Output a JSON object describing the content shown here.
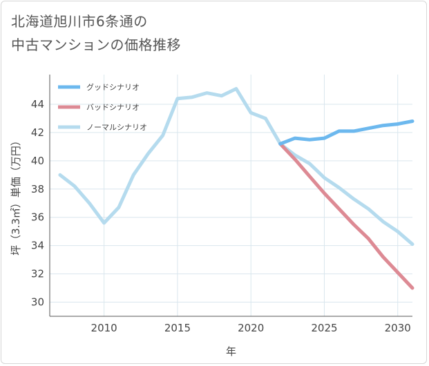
{
  "title": {
    "line1": "北海道旭川市6条通の",
    "line2": "中古マンションの価格推移"
  },
  "chart_data": {
    "type": "line",
    "xlabel": "年",
    "ylabel": "坪（3.3㎡）単価（万円）",
    "xlim": [
      2006.3,
      2031
    ],
    "ylim": [
      29,
      46.1
    ],
    "x_ticks": [
      2010,
      2015,
      2020,
      2025,
      2030
    ],
    "y_ticks": [
      30,
      32,
      34,
      36,
      38,
      40,
      42,
      44
    ],
    "grid": true,
    "legend_position": "top-left",
    "series": [
      {
        "name": "グッドシナリオ",
        "color": "#6cb8ee",
        "x": [
          2022,
          2023,
          2024,
          2025,
          2026,
          2027,
          2028,
          2029,
          2030,
          2031
        ],
        "y": [
          41.2,
          41.6,
          41.5,
          41.6,
          42.1,
          42.1,
          42.3,
          42.5,
          42.6,
          42.8
        ]
      },
      {
        "name": "バッドシナリオ",
        "color": "#dd8a94",
        "x": [
          2022,
          2023,
          2024,
          2025,
          2026,
          2027,
          2028,
          2029,
          2030,
          2031
        ],
        "y": [
          41.2,
          40.1,
          38.9,
          37.7,
          36.6,
          35.5,
          34.5,
          33.2,
          32.1,
          31.0
        ]
      },
      {
        "name": "ノーマルシナリオ",
        "color": "#b5dbee",
        "x": [
          2007,
          2008,
          2009,
          2010,
          2011,
          2012,
          2013,
          2014,
          2015,
          2016,
          2017,
          2018,
          2019,
          2020,
          2021,
          2022,
          2023,
          2024,
          2025,
          2026,
          2027,
          2028,
          2029,
          2030,
          2031
        ],
        "y": [
          39.0,
          38.2,
          37.0,
          35.6,
          36.7,
          39.0,
          40.5,
          41.8,
          44.4,
          44.5,
          44.8,
          44.6,
          45.1,
          43.4,
          43.0,
          41.2,
          40.4,
          39.8,
          38.8,
          38.1,
          37.3,
          36.6,
          35.7,
          35.0,
          34.1
        ]
      }
    ]
  }
}
